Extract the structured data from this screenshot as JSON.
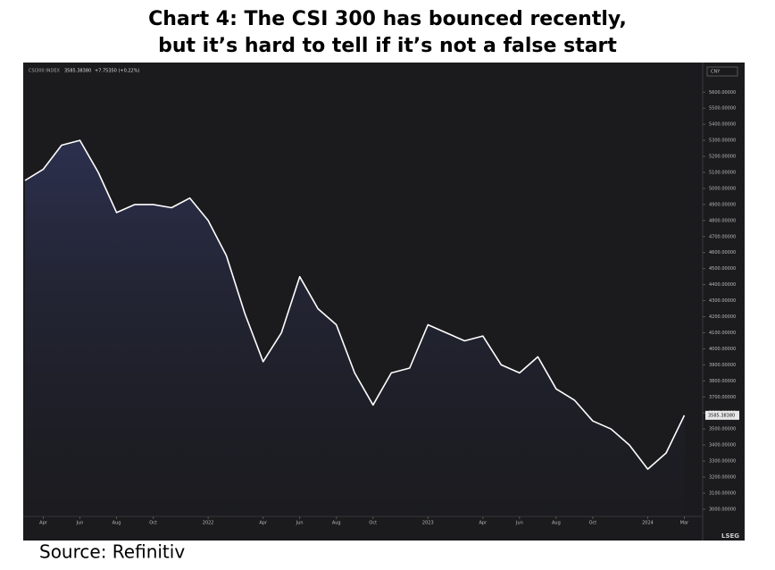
{
  "chart_data": {
    "type": "line",
    "title_lines": [
      "Chart 4: The CSI 300 has bounced recently,",
      "but it’s hard to tell if it’s not a false start"
    ],
    "index_name": "CSI300 INDEX",
    "price": "3585.38380",
    "change": "+7.75350 (+0.22%)",
    "currency": "CNY",
    "brand": "LSEG",
    "source": "Source: Refinitiv",
    "x": [
      "2021-03",
      "2021-04",
      "2021-05",
      "2021-06",
      "2021-07",
      "2021-08",
      "2021-09",
      "2021-10",
      "2021-11",
      "2021-12",
      "2022-01",
      "2022-02",
      "2022-03",
      "2022-04",
      "2022-05",
      "2022-06",
      "2022-07",
      "2022-08",
      "2022-09",
      "2022-10",
      "2022-11",
      "2022-12",
      "2023-01",
      "2023-02",
      "2023-03",
      "2023-04",
      "2023-05",
      "2023-06",
      "2023-07",
      "2023-08",
      "2023-09",
      "2023-10",
      "2023-11",
      "2023-12",
      "2024-01",
      "2024-02",
      "2024-03"
    ],
    "series": [
      {
        "name": "CSI300 INDEX",
        "color": "#ffffff",
        "values": [
          5050,
          5120,
          5270,
          5300,
          5100,
          4850,
          4900,
          4900,
          4880,
          4940,
          4800,
          4580,
          4220,
          3920,
          4100,
          4450,
          4250,
          4150,
          3850,
          3650,
          3850,
          3880,
          4150,
          4100,
          4050,
          4080,
          3900,
          3850,
          3950,
          3750,
          3680,
          3550,
          3500,
          3400,
          3250,
          3350,
          3585
        ]
      }
    ],
    "last_value": {
      "value": 3585.3838,
      "label": "3585.38380"
    },
    "xlim": [
      "2021-03",
      "2024-04"
    ],
    "xticks": [
      {
        "value": "2021-04",
        "label": "Apr"
      },
      {
        "value": "2021-06",
        "label": "Jun"
      },
      {
        "value": "2021-08",
        "label": "Aug"
      },
      {
        "value": "2021-10",
        "label": "Oct"
      },
      {
        "value": "2022-01",
        "label": "2022"
      },
      {
        "value": "2022-04",
        "label": "Apr"
      },
      {
        "value": "2022-06",
        "label": "Jun"
      },
      {
        "value": "2022-08",
        "label": "Aug"
      },
      {
        "value": "2022-10",
        "label": "Oct"
      },
      {
        "value": "2023-01",
        "label": "2023"
      },
      {
        "value": "2023-04",
        "label": "Apr"
      },
      {
        "value": "2023-06",
        "label": "Jun"
      },
      {
        "value": "2023-08",
        "label": "Aug"
      },
      {
        "value": "2023-10",
        "label": "Oct"
      },
      {
        "value": "2024-01",
        "label": "2024"
      },
      {
        "value": "2024-03",
        "label": "Mar"
      }
    ],
    "ylim": [
      2955,
      5685
    ],
    "yticks": [
      {
        "value": 3000,
        "label": "3000.00000"
      },
      {
        "value": 3100,
        "label": "3100.00000"
      },
      {
        "value": 3200,
        "label": "3200.00000"
      },
      {
        "value": 3300,
        "label": "3300.00000"
      },
      {
        "value": 3400,
        "label": "3400.00000"
      },
      {
        "value": 3500,
        "label": "3500.00000"
      },
      {
        "value": 3600,
        "label": "3600.00000"
      },
      {
        "value": 3700,
        "label": "3700.00000"
      },
      {
        "value": 3800,
        "label": "3800.00000"
      },
      {
        "value": 3900,
        "label": "3900.00000"
      },
      {
        "value": 4000,
        "label": "4000.00000"
      },
      {
        "value": 4100,
        "label": "4100.00000"
      },
      {
        "value": 4200,
        "label": "4200.00000"
      },
      {
        "value": 4300,
        "label": "4300.00000"
      },
      {
        "value": 4400,
        "label": "4400.00000"
      },
      {
        "value": 4500,
        "label": "4500.00000"
      },
      {
        "value": 4600,
        "label": "4600.00000"
      },
      {
        "value": 4700,
        "label": "4700.00000"
      },
      {
        "value": 4800,
        "label": "4800.00000"
      },
      {
        "value": 4900,
        "label": "4900.00000"
      },
      {
        "value": 5000,
        "label": "5000.00000"
      },
      {
        "value": 5100,
        "label": "5100.00000"
      },
      {
        "value": 5200,
        "label": "5200.00000"
      },
      {
        "value": 5300,
        "label": "5300.00000"
      },
      {
        "value": 5400,
        "label": "5400.00000"
      },
      {
        "value": 5500,
        "label": "5500.00000"
      },
      {
        "value": 5600,
        "label": "5600.00000"
      }
    ],
    "grid": false
  }
}
